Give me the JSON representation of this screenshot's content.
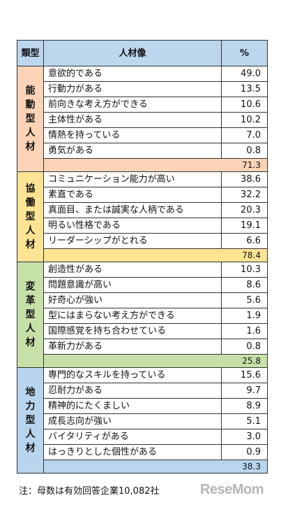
{
  "chart_data": {
    "type": "table",
    "columns": [
      "類型",
      "人材像",
      "%"
    ],
    "groups": [
      {
        "category": "能動型人材",
        "total": "71.3",
        "rows": [
          {
            "item": "意欲的である",
            "value": "49.0"
          },
          {
            "item": "行動力がある",
            "value": "13.5"
          },
          {
            "item": "前向きな考え方ができる",
            "value": "10.6"
          },
          {
            "item": "主体性がある",
            "value": "10.2"
          },
          {
            "item": "情熱を持っている",
            "value": "7.0"
          },
          {
            "item": "勇気がある",
            "value": "0.8"
          }
        ]
      },
      {
        "category": "協働型人材",
        "total": "78.4",
        "rows": [
          {
            "item": "コミュニケーション能力が高い",
            "value": "38.6"
          },
          {
            "item": "素直である",
            "value": "32.2"
          },
          {
            "item": "真面目、または誠実な人柄である",
            "value": "20.3"
          },
          {
            "item": "明るい性格である",
            "value": "19.1"
          },
          {
            "item": "リーダーシップがとれる",
            "value": "6.6"
          }
        ]
      },
      {
        "category": "変革型人材",
        "total": "25.8",
        "rows": [
          {
            "item": "創造性がある",
            "value": "10.3"
          },
          {
            "item": "問題意識が高い",
            "value": "8.6"
          },
          {
            "item": "好奇心が強い",
            "value": "5.6"
          },
          {
            "item": "型にはまらない考え方ができる",
            "value": "1.9"
          },
          {
            "item": "国際感覚を持ち合わせている",
            "value": "1.6"
          },
          {
            "item": "革新力がある",
            "value": "0.8"
          }
        ]
      },
      {
        "category": "地力型人材",
        "total": "38.3",
        "rows": [
          {
            "item": "専門的なスキルを持っている",
            "value": "15.6"
          },
          {
            "item": "忍耐力がある",
            "value": "9.7"
          },
          {
            "item": "精神的にたくましい",
            "value": "8.9"
          },
          {
            "item": "成長志向が強い",
            "value": "5.1"
          },
          {
            "item": "バイタリティがある",
            "value": "3.0"
          },
          {
            "item": "はっきりとした個性がある",
            "value": "0.9"
          }
        ]
      }
    ]
  },
  "note": "注：母数は有効回答企業10,082社",
  "logo": "ReseMom"
}
